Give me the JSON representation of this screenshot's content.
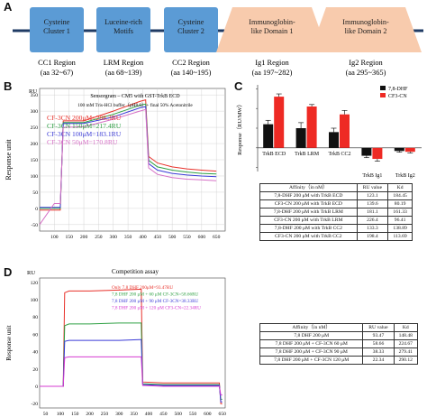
{
  "panel_labels": {
    "a": "A",
    "b": "B",
    "c": "C",
    "d": "D"
  },
  "panel_a": {
    "domains": [
      {
        "name": "Cysteine Cluster 1",
        "short": "CC1 Region",
        "range": "(aa 32~67)",
        "kind": "box"
      },
      {
        "name": "Luceine-rich Motifs",
        "short": "LRM Region",
        "range": "(aa 68~139)",
        "kind": "box"
      },
      {
        "name": "Cysteine Cluster 2",
        "short": "CC2 Region",
        "range": "(aa 140~195)",
        "kind": "box"
      },
      {
        "name": "Immunoglobin-like Domain 1",
        "short": "Ig1 Region",
        "range": "(aa 197~282)",
        "kind": "trap"
      },
      {
        "name": "Immunoglobin-like Domain 2",
        "short": "Ig2 Region",
        "range": "(aa 295~365)",
        "kind": "trap"
      }
    ],
    "colors": {
      "box": "#5b9bd5",
      "trap": "#f8cbad",
      "line": "#1f3b64"
    }
  },
  "panel_b": {
    "ylabel": "Response unit",
    "yunit": "RU",
    "title": "Sensorgram – CM5 with GST-TrkB ECD",
    "subtitle": "100 mM Tris-HCl buffer（pH8.0）+ final 50% Acetonitrile",
    "legend": [
      {
        "text": "CF-3CN 200μM=288.3RU",
        "color": "#e8312a"
      },
      {
        "text": "CF-3CN 150μM=217.4RU",
        "color": "#2ea043"
      },
      {
        "text": "CF-3CN 100μM=183.1RU",
        "color": "#3b3bd6"
      },
      {
        "text": "CF-3CN 50μM=170.8RU",
        "color": "#d670c6"
      }
    ]
  },
  "panel_c": {
    "ylabel": "Response（RU/MW）",
    "legend": [
      {
        "text": "7,8-DHF",
        "color": "#111111"
      },
      {
        "text": "CF3-CN",
        "color": "#ee2a24"
      }
    ],
    "table_headers": [
      "Affinity（in nM）",
      "RU value",
      "Kd"
    ],
    "table_rows": [
      [
        "7,8-DHF 200 μM with TrkB ECD",
        "123.1",
        "184.45"
      ],
      [
        "CF3-CN 200 μM with TrkB ECD",
        "139.6",
        "80.19"
      ],
      [
        "7,8-DHF 200 μM with TrkB LRM",
        "181.1",
        "161.33"
      ],
      [
        "CF3-CN 200 μM with TrkB LRM",
        "226.4",
        "96.41"
      ],
      [
        "7,8-DHF 200 μM with TrkB CC2",
        "133.3",
        "138.89"
      ],
      [
        "CF3-CN 200 μM with TrkB CC2",
        "198.4",
        "113.69"
      ]
    ]
  },
  "panel_d": {
    "yunit": "RU",
    "ylabel": "Response unit",
    "title": "Competition assay",
    "legend": [
      {
        "text": "Only 7,8 DHF 200μM=93.47RU",
        "color": "#e8312a"
      },
      {
        "text": "7,8 DHF 200 μM + 60 μM CF-3CN=58.66RU",
        "color": "#2ea043"
      },
      {
        "text": "7,8 DHF 200 μM + 90 μM CF-3CN=38.33RU",
        "color": "#3b3bd6"
      },
      {
        "text": "7,8 DHF 200 μM + 120 μM CF3-CN=22.34RU",
        "color": "#d63bd0"
      }
    ],
    "table_headers": [
      "Affinity（in nM）",
      "RU value",
      "Kd"
    ],
    "table_rows": [
      [
        "7,8 DHF 200 μM",
        "93.47",
        "148.48"
      ],
      [
        "7,8 DHF 200 μM + CF-3CN 60 μM",
        "58.66",
        "224.67"
      ],
      [
        "7,8 DHF 200 μM + CF-3CN 90 μM",
        "38.33",
        "279.41"
      ],
      [
        "7,8 DHF 200 μM + CF-3CN 120 μM",
        "22.34",
        "290.12"
      ]
    ]
  },
  "chart_data": [
    {
      "type": "line",
      "panel": "B",
      "ylabel": "Response unit",
      "xticks": [
        100,
        150,
        200,
        250,
        300,
        350,
        400,
        450,
        500,
        550,
        600,
        650
      ],
      "yticks": [
        -50,
        0,
        50,
        100,
        150,
        200,
        250,
        300,
        350
      ],
      "xlim": [
        50,
        680
      ],
      "ylim": [
        -70,
        370
      ],
      "grid": true,
      "series": [
        {
          "name": "CF-3CN 200μM=288.3RU",
          "color": "#e8312a",
          "x": [
            50,
            100,
            120,
            130,
            200,
            300,
            390,
            410,
            420,
            450,
            500,
            550,
            600,
            650
          ],
          "y": [
            -5,
            -5,
            -5,
            270,
            270,
            300,
            330,
            335,
            160,
            140,
            128,
            122,
            118,
            115
          ]
        },
        {
          "name": "CF-3CN 150μM=217.4RU",
          "color": "#2ea043",
          "x": [
            50,
            100,
            120,
            130,
            200,
            300,
            390,
            410,
            420,
            450,
            500,
            550,
            600,
            650
          ],
          "y": [
            0,
            0,
            0,
            265,
            265,
            290,
            318,
            322,
            148,
            128,
            118,
            112,
            108,
            106
          ]
        },
        {
          "name": "CF-3CN 100μM=183.1RU",
          "color": "#3b3bd6",
          "x": [
            50,
            100,
            120,
            130,
            200,
            300,
            390,
            410,
            420,
            450,
            500,
            550,
            600,
            650
          ],
          "y": [
            3,
            3,
            3,
            262,
            262,
            282,
            310,
            314,
            138,
            118,
            108,
            103,
            100,
            98
          ]
        },
        {
          "name": "CF-3CN 50μM=170.8RU",
          "color": "#d670c6",
          "x": [
            50,
            100,
            120,
            130,
            200,
            300,
            390,
            410,
            420,
            450,
            500,
            550,
            600,
            650
          ],
          "y": [
            -50,
            15,
            15,
            250,
            252,
            275,
            300,
            305,
            125,
            105,
            95,
            90,
            88,
            85
          ]
        }
      ]
    },
    {
      "type": "bar",
      "panel": "C",
      "ylabel": "Response（RU/MW）",
      "categories": [
        "TrkB ECD",
        "TrkB LRM",
        "TrkB CC2",
        "TrkB Ig1",
        "TrkB Ig2"
      ],
      "yticks": [
        -0.5,
        0,
        0.5,
        1,
        1.5
      ],
      "ylim": [
        -0.6,
        1.6
      ],
      "series": [
        {
          "name": "7,8-DHF",
          "color": "#111111",
          "values": [
            0.6,
            0.5,
            0.4,
            -0.2,
            -0.08
          ],
          "err": [
            0.1,
            0.14,
            0.1,
            0.05,
            0.03
          ]
        },
        {
          "name": "CF3-CN",
          "color": "#ee2a24",
          "values": [
            1.3,
            1.05,
            0.85,
            -0.28,
            -0.1
          ],
          "err": [
            0.07,
            0.05,
            0.1,
            0.06,
            0.03
          ]
        }
      ]
    },
    {
      "type": "line",
      "panel": "D",
      "ylabel": "Response unit",
      "xticks": [
        50,
        100,
        150,
        200,
        250,
        300,
        350,
        400,
        450,
        500,
        550,
        600,
        650
      ],
      "yticks": [
        -20,
        0,
        20,
        40,
        60,
        80,
        100,
        120
      ],
      "xlim": [
        30,
        660
      ],
      "ylim": [
        -25,
        125
      ],
      "series": [
        {
          "name": "Only 7,8 DHF 200μM=93.47RU",
          "color": "#e8312a",
          "x": [
            30,
            110,
            115,
            130,
            200,
            300,
            370,
            375,
            380,
            450,
            550,
            640,
            645,
            650
          ],
          "y": [
            0,
            0,
            108,
            110,
            110,
            111,
            112,
            112,
            5,
            4,
            4,
            4,
            -20,
            -20
          ]
        },
        {
          "name": "7,8 DHF 200 μM + 60 μM CF-3CN=58.66RU",
          "color": "#2ea043",
          "x": [
            30,
            110,
            115,
            130,
            200,
            300,
            370,
            375,
            380,
            450,
            550,
            640,
            645,
            650
          ],
          "y": [
            0,
            0,
            70,
            72,
            72,
            73,
            73,
            73,
            3,
            2,
            2,
            2,
            -15,
            -15
          ]
        },
        {
          "name": "7,8 DHF 200 μM + 90 μM CF-3CN=38.33RU",
          "color": "#3b3bd6",
          "x": [
            30,
            110,
            115,
            130,
            200,
            300,
            370,
            375,
            380,
            450,
            550,
            640,
            645,
            650
          ],
          "y": [
            0,
            0,
            52,
            53,
            53,
            53,
            54,
            54,
            2,
            1,
            1,
            1,
            -18,
            -18
          ]
        },
        {
          "name": "7,8 DHF 200 μM + 120 μM CF3-CN=22.34RU",
          "color": "#d63bd0",
          "x": [
            30,
            110,
            115,
            130,
            200,
            300,
            370,
            375,
            380,
            450,
            550,
            640,
            645,
            650
          ],
          "y": [
            0,
            0,
            33,
            34,
            34,
            34,
            34,
            34,
            1,
            0,
            0,
            0,
            -10,
            -10
          ]
        }
      ]
    }
  ]
}
